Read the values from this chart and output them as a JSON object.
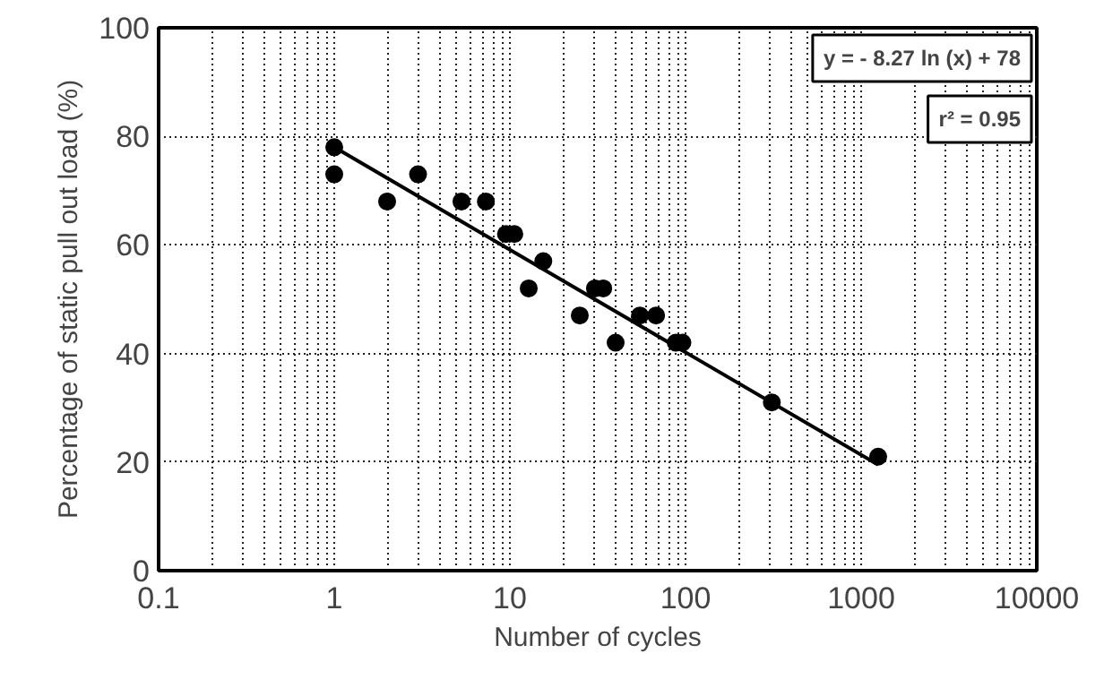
{
  "chart_data": {
    "type": "scatter",
    "xlabel": "Number of cycles",
    "ylabel": "Percentage of static pull out load (%)",
    "log": "x",
    "xlim": [
      0.1,
      10000
    ],
    "xticks": [
      0.1,
      1,
      10,
      100,
      1000,
      10000
    ],
    "ylim": [
      0,
      100
    ],
    "yticks": [
      0,
      20,
      40,
      60,
      80,
      100
    ],
    "grid": true,
    "annotations": [
      "y = - 8.27 ln (x) + 78",
      "r² = 0.95"
    ],
    "series": [
      {
        "marker": "circle",
        "color": "#000000",
        "x": [
          1,
          1,
          2,
          3,
          5.3,
          7.3,
          9.5,
          10.6,
          12.8,
          15.5,
          25,
          30.5,
          34,
          40,
          55,
          68,
          88,
          96,
          310,
          1250
        ],
        "values": [
          78,
          73,
          68,
          73,
          68,
          68,
          62,
          62,
          52,
          57,
          47,
          52,
          52,
          42,
          47,
          47,
          42,
          42,
          31,
          21
        ]
      },
      {
        "type": "line",
        "color": "#000000",
        "x": [
          1,
          1250
        ],
        "values": [
          78,
          19.5
        ]
      }
    ]
  }
}
